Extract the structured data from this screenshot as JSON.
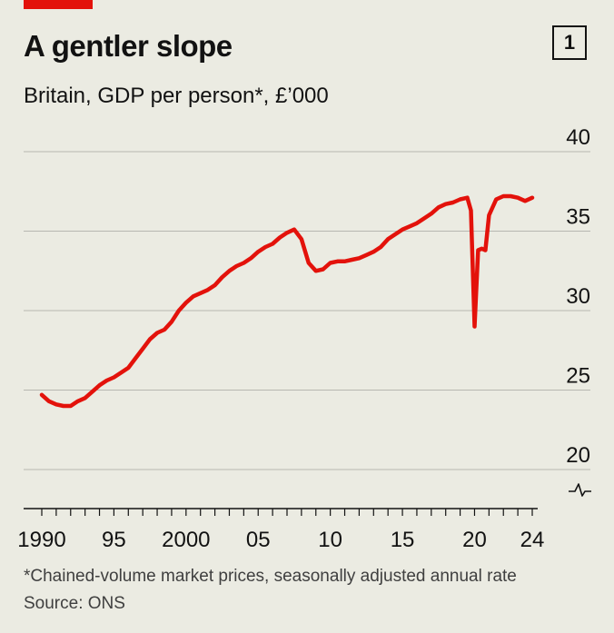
{
  "header": {
    "title": "A gentler slope",
    "chart_number": "1",
    "subtitle": "Britain, GDP per person*, £’000"
  },
  "footer": {
    "footnote": "*Chained-volume market prices, seasonally adjusted annual rate",
    "source": "Source: ONS"
  },
  "colors": {
    "line": "#e3120b",
    "accent": "#e3120b",
    "grid": "#b7b7b0",
    "background": "#ebebe2"
  },
  "chart_data": {
    "type": "line",
    "title": "A gentler slope",
    "subtitle": "Britain, GDP per person*, £’000",
    "ylim": [
      20,
      40
    ],
    "xlim": [
      1990,
      2024
    ],
    "y_axis_side": "right",
    "y_axis_break": true,
    "grid": "horizontal",
    "y_ticks": [
      {
        "value": 20,
        "label": "20"
      },
      {
        "value": 25,
        "label": "25"
      },
      {
        "value": 30,
        "label": "30"
      },
      {
        "value": 35,
        "label": "35"
      },
      {
        "value": 40,
        "label": "40"
      }
    ],
    "x_ticks": [
      {
        "value": 1990,
        "label": "1990"
      },
      {
        "value": 1995,
        "label": "95"
      },
      {
        "value": 2000,
        "label": "2000"
      },
      {
        "value": 2005,
        "label": "05"
      },
      {
        "value": 2010,
        "label": "10"
      },
      {
        "value": 2015,
        "label": "15"
      },
      {
        "value": 2020,
        "label": "20"
      },
      {
        "value": 2024,
        "label": "24"
      }
    ],
    "series": [
      {
        "color": "#e3120b",
        "points": [
          [
            1990.0,
            24.7
          ],
          [
            1990.5,
            24.3
          ],
          [
            1991.0,
            24.1
          ],
          [
            1991.5,
            24.0
          ],
          [
            1992.0,
            24.0
          ],
          [
            1992.5,
            24.3
          ],
          [
            1993.0,
            24.5
          ],
          [
            1993.5,
            24.9
          ],
          [
            1994.0,
            25.3
          ],
          [
            1994.5,
            25.6
          ],
          [
            1995.0,
            25.8
          ],
          [
            1995.5,
            26.1
          ],
          [
            1996.0,
            26.4
          ],
          [
            1996.5,
            27.0
          ],
          [
            1997.0,
            27.6
          ],
          [
            1997.5,
            28.2
          ],
          [
            1998.0,
            28.6
          ],
          [
            1998.5,
            28.8
          ],
          [
            1999.0,
            29.3
          ],
          [
            1999.5,
            30.0
          ],
          [
            2000.0,
            30.5
          ],
          [
            2000.5,
            30.9
          ],
          [
            2001.0,
            31.1
          ],
          [
            2001.5,
            31.3
          ],
          [
            2002.0,
            31.6
          ],
          [
            2002.5,
            32.1
          ],
          [
            2003.0,
            32.5
          ],
          [
            2003.5,
            32.8
          ],
          [
            2004.0,
            33.0
          ],
          [
            2004.5,
            33.3
          ],
          [
            2005.0,
            33.7
          ],
          [
            2005.5,
            34.0
          ],
          [
            2006.0,
            34.2
          ],
          [
            2006.5,
            34.6
          ],
          [
            2007.0,
            34.9
          ],
          [
            2007.5,
            35.1
          ],
          [
            2008.0,
            34.5
          ],
          [
            2008.5,
            33.0
          ],
          [
            2009.0,
            32.5
          ],
          [
            2009.5,
            32.6
          ],
          [
            2010.0,
            33.0
          ],
          [
            2010.5,
            33.1
          ],
          [
            2011.0,
            33.1
          ],
          [
            2011.5,
            33.2
          ],
          [
            2012.0,
            33.3
          ],
          [
            2012.5,
            33.5
          ],
          [
            2013.0,
            33.7
          ],
          [
            2013.5,
            34.0
          ],
          [
            2014.0,
            34.5
          ],
          [
            2014.5,
            34.8
          ],
          [
            2015.0,
            35.1
          ],
          [
            2015.5,
            35.3
          ],
          [
            2016.0,
            35.5
          ],
          [
            2016.5,
            35.8
          ],
          [
            2017.0,
            36.1
          ],
          [
            2017.5,
            36.5
          ],
          [
            2018.0,
            36.7
          ],
          [
            2018.5,
            36.8
          ],
          [
            2019.0,
            37.0
          ],
          [
            2019.5,
            37.1
          ],
          [
            2019.75,
            36.3
          ],
          [
            2020.0,
            29.0
          ],
          [
            2020.25,
            33.8
          ],
          [
            2020.5,
            33.9
          ],
          [
            2020.75,
            33.8
          ],
          [
            2021.0,
            36.0
          ],
          [
            2021.5,
            37.0
          ],
          [
            2022.0,
            37.2
          ],
          [
            2022.5,
            37.2
          ],
          [
            2023.0,
            37.1
          ],
          [
            2023.5,
            36.9
          ],
          [
            2024.0,
            37.1
          ]
        ]
      }
    ]
  }
}
